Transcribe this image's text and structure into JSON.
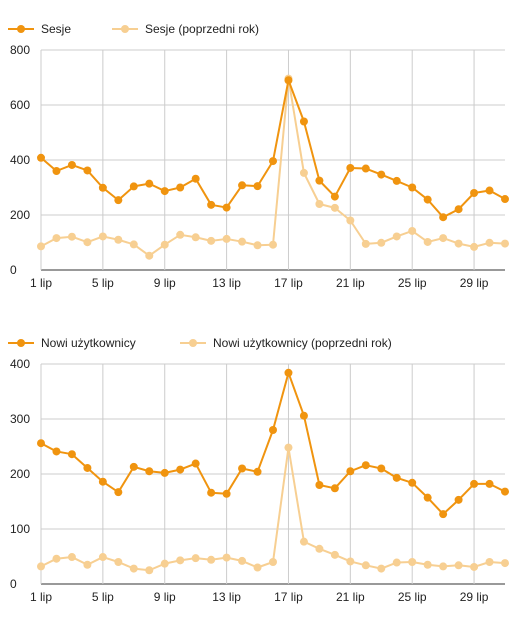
{
  "chart_data": [
    {
      "type": "line",
      "categories": [
        "1 lip",
        "2 lip",
        "3 lip",
        "4 lip",
        "5 lip",
        "6 lip",
        "7 lip",
        "8 lip",
        "9 lip",
        "10 lip",
        "11 lip",
        "12 lip",
        "13 lip",
        "14 lip",
        "15 lip",
        "16 lip",
        "17 lip",
        "18 lip",
        "19 lip",
        "20 lip",
        "21 lip",
        "22 lip",
        "23 lip",
        "24 lip",
        "25 lip",
        "26 lip",
        "27 lip",
        "28 lip",
        "29 lip",
        "30 lip",
        "31 lip"
      ],
      "x_tick_labels": [
        "1 lip",
        "5 lip",
        "9 lip",
        "13 lip",
        "17 lip",
        "21 lip",
        "25 lip",
        "29 lip"
      ],
      "y_ticks": [
        0,
        200,
        400,
        600,
        800
      ],
      "ylim": [
        0,
        800
      ],
      "grid": true,
      "legend_position": "top-left",
      "series": [
        {
          "name": "Sesje",
          "color": "#f0940f",
          "values": [
            408,
            360,
            382,
            362,
            299,
            254,
            304,
            314,
            287,
            300,
            332,
            237,
            227,
            308,
            305,
            396,
            690,
            540,
            325,
            267,
            371,
            369,
            347,
            324,
            300,
            256,
            192,
            221,
            280,
            289,
            258
          ]
        },
        {
          "name": "Sesje (poprzedni rok)",
          "color": "#f7cf92",
          "values": [
            86,
            116,
            121,
            101,
            122,
            110,
            93,
            52,
            92,
            128,
            119,
            106,
            113,
            103,
            90,
            92,
            696,
            353,
            240,
            226,
            180,
            95,
            99,
            122,
            142,
            102,
            116,
            96,
            84,
            99,
            96
          ]
        }
      ]
    },
    {
      "type": "line",
      "categories": [
        "1 lip",
        "2 lip",
        "3 lip",
        "4 lip",
        "5 lip",
        "6 lip",
        "7 lip",
        "8 lip",
        "9 lip",
        "10 lip",
        "11 lip",
        "12 lip",
        "13 lip",
        "14 lip",
        "15 lip",
        "16 lip",
        "17 lip",
        "18 lip",
        "19 lip",
        "20 lip",
        "21 lip",
        "22 lip",
        "23 lip",
        "24 lip",
        "25 lip",
        "26 lip",
        "27 lip",
        "28 lip",
        "29 lip",
        "30 lip",
        "31 lip"
      ],
      "x_tick_labels": [
        "1 lip",
        "5 lip",
        "9 lip",
        "13 lip",
        "17 lip",
        "21 lip",
        "25 lip",
        "29 lip"
      ],
      "y_ticks": [
        0,
        100,
        200,
        300,
        400
      ],
      "ylim": [
        0,
        400
      ],
      "grid": true,
      "legend_position": "top-left",
      "series": [
        {
          "name": "Nowi użytkownicy",
          "color": "#f0940f",
          "values": [
            256,
            241,
            236,
            211,
            186,
            167,
            213,
            205,
            202,
            208,
            219,
            166,
            164,
            210,
            204,
            280,
            384,
            306,
            180,
            174,
            205,
            216,
            210,
            193,
            184,
            157,
            127,
            153,
            182,
            182,
            168
          ]
        },
        {
          "name": "Nowi użytkownicy (poprzedni rok)",
          "color": "#f7cf92",
          "values": [
            32,
            46,
            49,
            35,
            49,
            40,
            28,
            25,
            37,
            43,
            47,
            44,
            48,
            42,
            30,
            40,
            248,
            77,
            64,
            53,
            41,
            34,
            28,
            39,
            40,
            35,
            32,
            34,
            31,
            40,
            38
          ]
        }
      ]
    }
  ]
}
